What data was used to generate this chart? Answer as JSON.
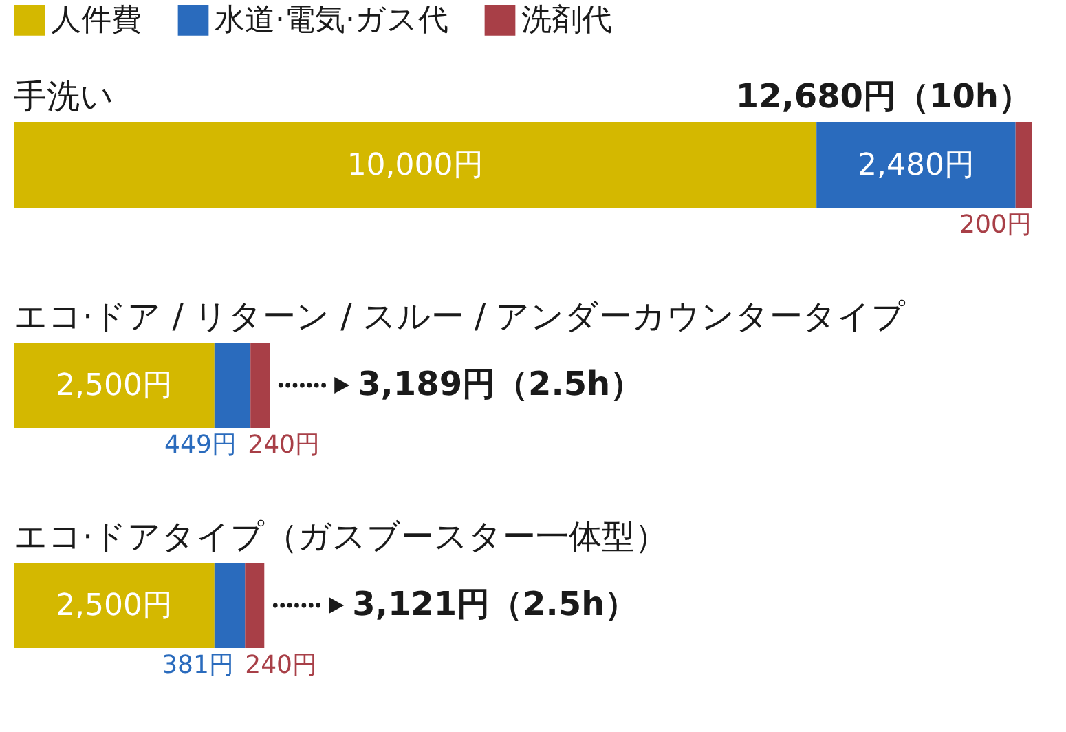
{
  "chart_data": {
    "type": "bar",
    "orientation": "horizontal",
    "stacked": true,
    "categories": [
      "手洗い",
      "エコ·ドア / リターン / スルー / アンダーカウンタータイプ",
      "エコ·ドアタイプ（ガスブースター一体型）"
    ],
    "series": [
      {
        "name": "人件費",
        "color": "#d4b800",
        "values": [
          10000,
          2500,
          2500
        ],
        "value_labels": [
          "10,000円",
          "2,500円",
          "2,500円"
        ]
      },
      {
        "name": "水道·電気·ガス代",
        "color": "#2a6bbd",
        "values": [
          2480,
          449,
          381
        ],
        "value_labels": [
          "2,480円",
          "449円",
          "381円"
        ]
      },
      {
        "name": "洗剤代",
        "color": "#a83f47",
        "values": [
          200,
          240,
          240
        ],
        "value_labels": [
          "200円",
          "240円",
          "240円"
        ]
      }
    ],
    "totals": [
      "12,680円（10h）",
      "3,189円（2.5h）",
      "3,121円（2.5h）"
    ],
    "legend": "top left"
  }
}
